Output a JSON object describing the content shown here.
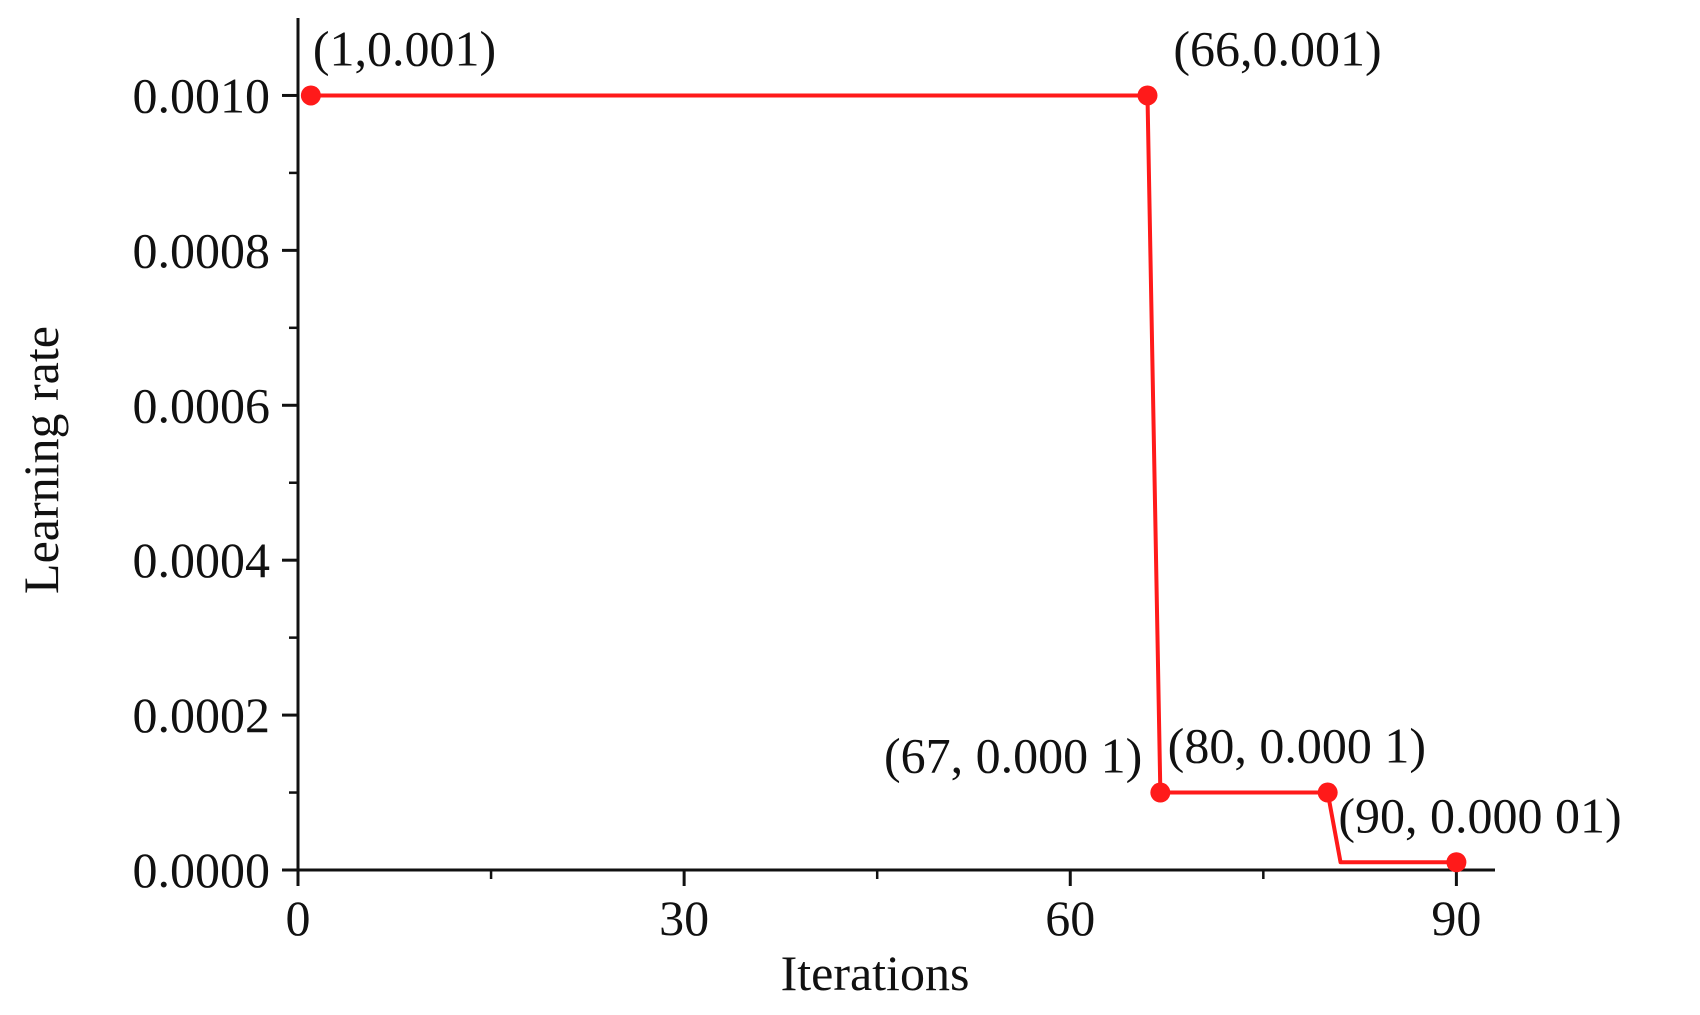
{
  "chart_data": {
    "type": "line",
    "title": "",
    "xlabel": "Iterations",
    "ylabel": "Learning rate",
    "xlim": [
      0,
      93
    ],
    "ylim": [
      0,
      0.0011
    ],
    "grid": false,
    "legend": "none",
    "x_ticks": [
      0,
      30,
      60,
      90
    ],
    "x_tick_labels": [
      "0",
      "30",
      "60",
      "90"
    ],
    "y_ticks": [
      0,
      0.0002,
      0.0004,
      0.0006,
      0.0008,
      0.001
    ],
    "y_tick_labels": [
      "0.0000",
      "0.0002",
      "0.0004",
      "0.0006",
      "0.0008",
      "0.0010"
    ],
    "series": [
      {
        "color": "#ff1a1a",
        "x": [
          1,
          66,
          67,
          80,
          81,
          90
        ],
        "y": [
          0.001,
          0.001,
          0.0001,
          0.0001,
          1e-05,
          1e-05
        ]
      }
    ],
    "markers": [
      {
        "x": 1,
        "y": 0.001,
        "label": "(1,0.001)"
      },
      {
        "x": 66,
        "y": 0.001,
        "label": "(66,0.001)"
      },
      {
        "x": 67,
        "y": 0.0001,
        "label": "(67, 0.000 1)"
      },
      {
        "x": 80,
        "y": 0.0001,
        "label": "(80, 0.000 1)"
      },
      {
        "x": 90,
        "y": 1e-05,
        "label": "(90, 0.000 01)"
      }
    ]
  }
}
